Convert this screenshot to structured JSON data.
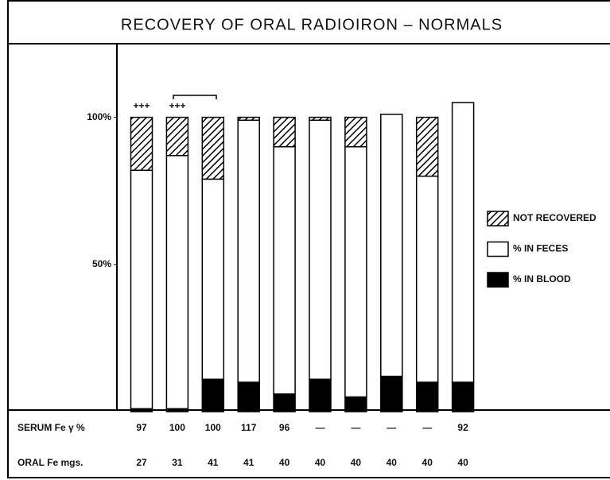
{
  "chart_data": {
    "type": "stacked-bar",
    "title": "RECOVERY OF ORAL RADIOIRON – NORMALS",
    "ylim": [
      0,
      125
    ],
    "yticks": [
      {
        "value": 50,
        "label": "50%"
      },
      {
        "value": 100,
        "label": "100%"
      }
    ],
    "legend": "right",
    "annotations": [
      "+++",
      "+++"
    ],
    "series": [
      {
        "name": "% IN BLOOD",
        "color": "#000000",
        "values": [
          1,
          1,
          11,
          10,
          6,
          11,
          5,
          12,
          10,
          10
        ]
      },
      {
        "name": "% IN FECES",
        "color": "#ffffff",
        "values": [
          81,
          86,
          68,
          89,
          84,
          88,
          85,
          89,
          70,
          95
        ]
      },
      {
        "name": "NOT RECOVERED",
        "color": "#000000",
        "pattern": "hatch",
        "values": [
          18,
          13,
          21,
          1,
          10,
          1,
          10,
          0,
          20,
          0
        ]
      }
    ],
    "table": {
      "rows": [
        {
          "label": "SERUM Fe γ %",
          "values": [
            97,
            100,
            100,
            117,
            96,
            "—",
            "—",
            "—",
            "—",
            92
          ]
        },
        {
          "label": "ORAL Fe mgs.",
          "values": [
            27,
            31,
            41,
            41,
            40,
            40,
            40,
            40,
            40,
            40
          ]
        }
      ]
    }
  }
}
